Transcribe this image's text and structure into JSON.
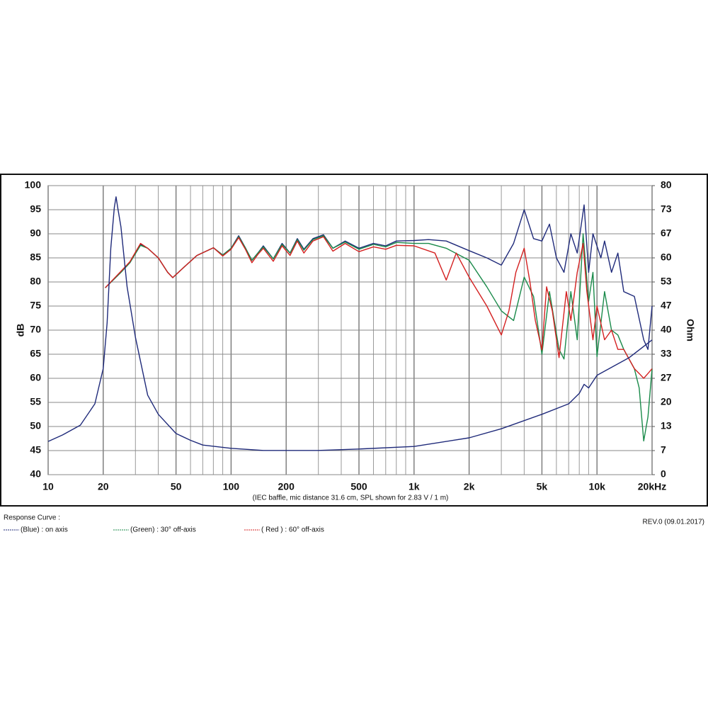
{
  "chart_data": {
    "type": "line",
    "subtitle": "(IEC baffle, mic distance 31.6 cm, SPL shown for 2.83 V / 1 m)",
    "ylabel": "dB",
    "y2label": "Ohm",
    "legend_title": "Response Curve :",
    "revision": "REV.0 (09.01.2017)",
    "xscale": "log",
    "grid": true,
    "xlim": [
      10,
      20000
    ],
    "xticks": [
      10,
      20,
      50,
      100,
      200,
      500,
      {
        "value": 1000,
        "label": "1k"
      },
      {
        "value": 2000,
        "label": "2k"
      },
      {
        "value": 5000,
        "label": "5k"
      },
      {
        "value": 10000,
        "label": "10k"
      },
      {
        "value": 20000,
        "label": "20kHz"
      }
    ],
    "xminor": [
      30,
      40,
      60,
      70,
      80,
      90,
      300,
      400,
      600,
      700,
      800,
      900,
      3000,
      4000,
      6000,
      7000,
      8000,
      9000
    ],
    "ylim": [
      40,
      100
    ],
    "yticks": [
      40,
      45,
      50,
      55,
      60,
      65,
      70,
      75,
      80,
      85,
      90,
      95,
      100
    ],
    "y2lim": [
      0,
      80
    ],
    "y2ticks": [
      0,
      {
        "value": 6.667,
        "label": "7"
      },
      {
        "value": 13.333,
        "label": "13"
      },
      20,
      {
        "value": 26.667,
        "label": "27"
      },
      {
        "value": 33.333,
        "label": "33"
      },
      40,
      {
        "value": 46.667,
        "label": "47"
      },
      {
        "value": 53.333,
        "label": "53"
      },
      60,
      {
        "value": 66.667,
        "label": "67"
      },
      {
        "value": 73.333,
        "label": "73"
      },
      80
    ],
    "series": [
      {
        "name": "(Blue)  : on axis",
        "color": "#1f2a7a",
        "x": [
          20.5,
          25,
          28,
          32,
          35,
          40,
          45,
          48,
          55,
          65,
          80,
          90,
          100,
          110,
          120,
          130,
          140,
          150,
          170,
          190,
          210,
          230,
          250,
          280,
          320,
          360,
          420,
          500,
          600,
          700,
          800,
          1000,
          1200,
          1500,
          2000,
          2500,
          3000,
          3500,
          4000,
          4500,
          5000,
          5500,
          6000,
          6600,
          7200,
          7800,
          8500,
          9000,
          9500,
          10500,
          11000,
          12000,
          13000,
          14000,
          16000,
          18000,
          19000,
          20000
        ],
        "values": [
          78.8,
          82,
          84,
          87.8,
          87,
          85,
          82,
          80.9,
          83,
          85.5,
          87.1,
          85.6,
          87,
          89.6,
          87,
          84.5,
          86,
          87.5,
          84.8,
          88,
          86,
          89,
          86.8,
          89,
          89.8,
          87,
          88.5,
          87,
          88,
          87.5,
          88.5,
          88.6,
          88.8,
          88.5,
          86.5,
          85,
          83.5,
          88,
          95,
          89,
          88.5,
          92,
          85,
          82,
          90,
          86,
          96,
          82,
          90,
          85,
          88.5,
          82,
          86,
          78,
          77,
          68,
          66,
          75
        ]
      },
      {
        "name": "(Green) : 30° off-axis",
        "color": "#1a8a4a",
        "x": [
          20.5,
          25,
          28,
          32,
          35,
          40,
          45,
          48,
          55,
          65,
          80,
          90,
          100,
          110,
          120,
          130,
          140,
          150,
          170,
          190,
          210,
          230,
          250,
          280,
          320,
          360,
          420,
          500,
          600,
          700,
          800,
          1000,
          1200,
          1500,
          2000,
          2500,
          3000,
          3500,
          4000,
          4500,
          5000,
          5500,
          6200,
          6600,
          7200,
          7800,
          8400,
          9000,
          9500,
          10000,
          11000,
          12000,
          13000,
          14000,
          16000,
          17000,
          18000,
          19000,
          20000
        ],
        "values": [
          78.8,
          82,
          84,
          87.6,
          87,
          85,
          82,
          80.9,
          83,
          85.5,
          87.1,
          85.6,
          87,
          89.4,
          87,
          84.5,
          86,
          87.3,
          84.8,
          87.8,
          86,
          88.8,
          86.6,
          88.8,
          89.6,
          87,
          88.3,
          86.8,
          87.8,
          87.3,
          88.2,
          88,
          88,
          87,
          84.5,
          79,
          74,
          72,
          81,
          77,
          65,
          78,
          66,
          64,
          78,
          68,
          90,
          76,
          82,
          64.5,
          78,
          70,
          69,
          66,
          62,
          58,
          47,
          52,
          62
        ]
      },
      {
        "name": "( Red ) : 60° off-axis",
        "color": "#d42020",
        "x": [
          20.5,
          25,
          28,
          32,
          35,
          40,
          45,
          48,
          55,
          65,
          80,
          90,
          100,
          110,
          120,
          130,
          140,
          150,
          170,
          190,
          210,
          230,
          250,
          280,
          320,
          360,
          420,
          500,
          600,
          700,
          800,
          1000,
          1300,
          1500,
          1700,
          2000,
          2500,
          3000,
          3300,
          3600,
          4000,
          4300,
          4600,
          5000,
          5300,
          5700,
          6200,
          6800,
          7200,
          7800,
          8400,
          8800,
          9500,
          10000,
          11000,
          12000,
          13000,
          14000,
          16000,
          17000,
          18000,
          19000,
          20000
        ],
        "values": [
          78.8,
          82.2,
          84.2,
          88,
          87,
          85,
          82,
          80.9,
          83,
          85.5,
          87.1,
          85.4,
          86.8,
          89.2,
          86.7,
          84,
          85.7,
          87,
          84.3,
          87.5,
          85.5,
          88.5,
          86,
          88.5,
          89.4,
          86.4,
          88,
          86.3,
          87.3,
          86.8,
          87.6,
          87.5,
          86,
          80.4,
          86,
          81,
          75,
          69,
          74,
          82,
          87,
          80,
          72,
          65.9,
          79,
          74,
          64.3,
          78,
          72,
          82,
          88,
          78,
          68,
          75,
          68,
          70,
          66,
          66,
          62,
          61,
          60,
          61,
          62
        ]
      },
      {
        "color": "#1f2a7a",
        "axis": "y2",
        "x": [
          10,
          12,
          15,
          18,
          20,
          21,
          22,
          23,
          23.5,
          24,
          25,
          27,
          30,
          35,
          40,
          50,
          60,
          70,
          100,
          150,
          300,
          500,
          1000,
          2000,
          3000,
          5000,
          7000,
          8000,
          8500,
          9000,
          10000,
          15000,
          20000
        ],
        "values": [
          9.2,
          11,
          13.7,
          19.6,
          29.4,
          42,
          62.7,
          74,
          76.9,
          74,
          68.6,
          52,
          38,
          22,
          16.7,
          11.4,
          9.5,
          8.2,
          7.3,
          6.7,
          6.7,
          7.1,
          7.8,
          10.2,
          12.7,
          16.7,
          19.6,
          22.5,
          25,
          24,
          27.5,
          32.4,
          37.3
        ]
      }
    ]
  }
}
